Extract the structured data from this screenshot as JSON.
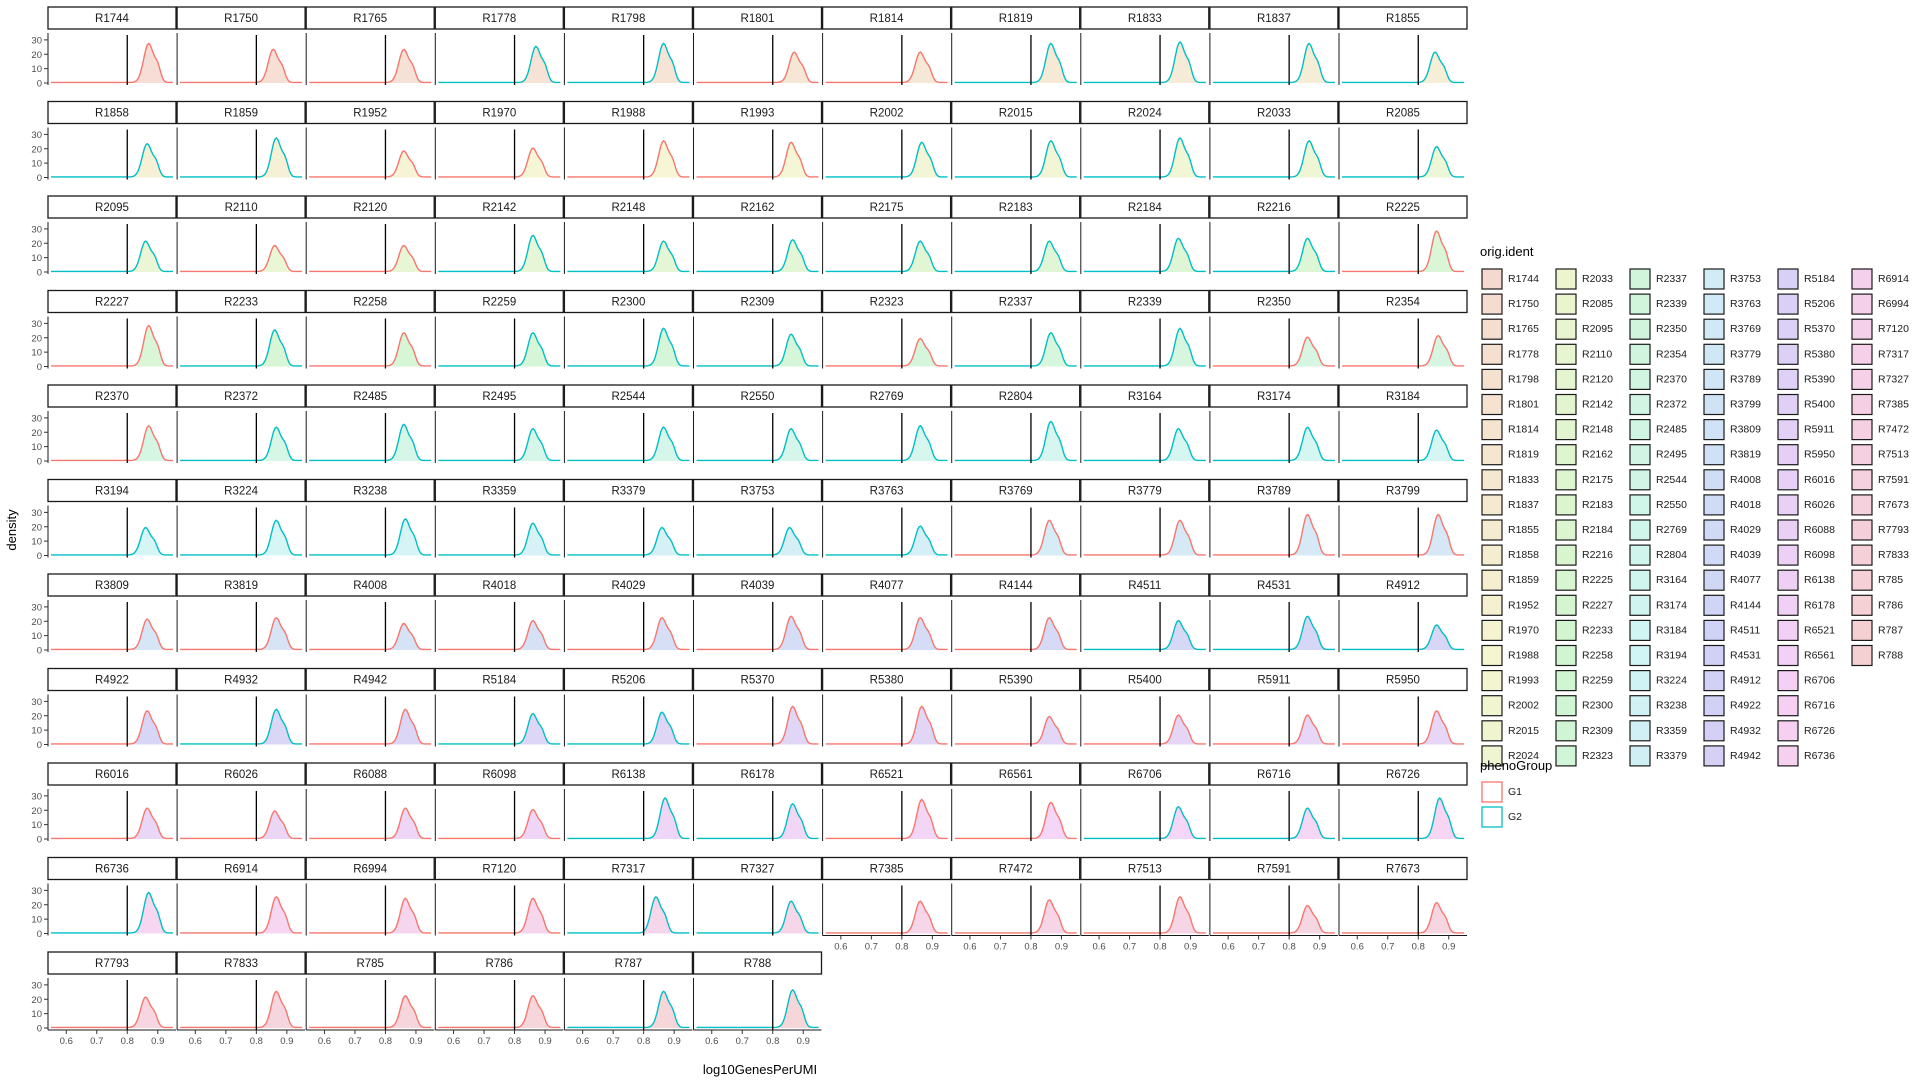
{
  "chart_data": {
    "type": "density-facet",
    "xlabel": "log10GenesPerUMI",
    "ylabel": "density",
    "xlim": [
      0.55,
      0.95
    ],
    "ylim": [
      0,
      32
    ],
    "xticks": [
      0.6,
      0.7,
      0.8,
      0.9
    ],
    "xtick_labels": [
      "0.6",
      "0.7",
      "0.8",
      "0.9"
    ],
    "yticks": [
      0,
      10,
      20,
      30
    ],
    "ytick_labels": [
      "0",
      "10",
      "20",
      "30"
    ],
    "vline_x": 0.8,
    "ncol": 11,
    "colors": {
      "G1": "#F8766D",
      "G2": "#00BFC4"
    },
    "legend_fill": {
      "title": "orig.ident",
      "columns": [
        [
          "R1744",
          "R1750",
          "R1765",
          "R1778",
          "R1798",
          "R1801",
          "R1814",
          "R1819",
          "R1833",
          "R1837",
          "R1855",
          "R1858",
          "R1859",
          "R1952",
          "R1970",
          "R1988",
          "R1993",
          "R2002",
          "R2015",
          "R2024"
        ],
        [
          "R2033",
          "R2085",
          "R2095",
          "R2110",
          "R2120",
          "R2142",
          "R2148",
          "R2162",
          "R2175",
          "R2183",
          "R2184",
          "R2216",
          "R2225",
          "R2227",
          "R2233",
          "R2258",
          "R2259",
          "R2300",
          "R2309",
          "R2323"
        ],
        [
          "R2337",
          "R2339",
          "R2350",
          "R2354",
          "R2370",
          "R2372",
          "R2485",
          "R2495",
          "R2544",
          "R2550",
          "R2769",
          "R2804",
          "R3164",
          "R3174",
          "R3184",
          "R3194",
          "R3224",
          "R3238",
          "R3359",
          "R3379"
        ],
        [
          "R3753",
          "R3763",
          "R3769",
          "R3779",
          "R3789",
          "R3799",
          "R3809",
          "R3819",
          "R4008",
          "R4018",
          "R4029",
          "R4039",
          "R4077",
          "R4144",
          "R4511",
          "R4531",
          "R4912",
          "R4922",
          "R4932",
          "R4942"
        ],
        [
          "R5184",
          "R5206",
          "R5370",
          "R5380",
          "R5390",
          "R5400",
          "R5911",
          "R5950",
          "R6016",
          "R6026",
          "R6088",
          "R6098",
          "R6138",
          "R6178",
          "R6521",
          "R6561",
          "R6706",
          "R6716",
          "R6726",
          "R6736"
        ],
        [
          "R6914",
          "R6994",
          "R7120",
          "R7317",
          "R7327",
          "R7385",
          "R7472",
          "R7513",
          "R7591",
          "R7673",
          "R7793",
          "R7833",
          "R785",
          "R786",
          "R787",
          "R788"
        ]
      ]
    },
    "legend_color": {
      "title": "phenoGroup",
      "entries": [
        "G1",
        "G2"
      ]
    },
    "panels": [
      {
        "id": "R1744",
        "g": "G1",
        "peak": 0.87,
        "h": 27
      },
      {
        "id": "R1750",
        "g": "G1",
        "peak": 0.855,
        "h": 23
      },
      {
        "id": "R1765",
        "g": "G1",
        "peak": 0.86,
        "h": 23
      },
      {
        "id": "R1778",
        "g": "G2",
        "peak": 0.87,
        "h": 25
      },
      {
        "id": "R1798",
        "g": "G2",
        "peak": 0.865,
        "h": 27
      },
      {
        "id": "R1801",
        "g": "G1",
        "peak": 0.87,
        "h": 21
      },
      {
        "id": "R1814",
        "g": "G1",
        "peak": 0.86,
        "h": 21
      },
      {
        "id": "R1819",
        "g": "G2",
        "peak": 0.865,
        "h": 27
      },
      {
        "id": "R1833",
        "g": "G2",
        "peak": 0.865,
        "h": 28
      },
      {
        "id": "R1837",
        "g": "G2",
        "peak": 0.865,
        "h": 27
      },
      {
        "id": "R1855",
        "g": "G2",
        "peak": 0.855,
        "h": 21
      },
      {
        "id": "R1858",
        "g": "G2",
        "peak": 0.865,
        "h": 23
      },
      {
        "id": "R1859",
        "g": "G2",
        "peak": 0.865,
        "h": 27
      },
      {
        "id": "R1952",
        "g": "G1",
        "peak": 0.86,
        "h": 18
      },
      {
        "id": "R1970",
        "g": "G1",
        "peak": 0.86,
        "h": 20
      },
      {
        "id": "R1988",
        "g": "G1",
        "peak": 0.865,
        "h": 25
      },
      {
        "id": "R1993",
        "g": "G1",
        "peak": 0.86,
        "h": 24
      },
      {
        "id": "R2002",
        "g": "G2",
        "peak": 0.865,
        "h": 24
      },
      {
        "id": "R2015",
        "g": "G2",
        "peak": 0.865,
        "h": 25
      },
      {
        "id": "R2024",
        "g": "G2",
        "peak": 0.865,
        "h": 27
      },
      {
        "id": "R2033",
        "g": "G2",
        "peak": 0.865,
        "h": 25
      },
      {
        "id": "R2085",
        "g": "G2",
        "peak": 0.86,
        "h": 21
      },
      {
        "id": "R2095",
        "g": "G2",
        "peak": 0.86,
        "h": 21
      },
      {
        "id": "R2110",
        "g": "G1",
        "peak": 0.86,
        "h": 18
      },
      {
        "id": "R2120",
        "g": "G1",
        "peak": 0.86,
        "h": 18
      },
      {
        "id": "R2142",
        "g": "G2",
        "peak": 0.86,
        "h": 25
      },
      {
        "id": "R2148",
        "g": "G2",
        "peak": 0.865,
        "h": 21
      },
      {
        "id": "R2162",
        "g": "G2",
        "peak": 0.865,
        "h": 22
      },
      {
        "id": "R2175",
        "g": "G2",
        "peak": 0.86,
        "h": 21
      },
      {
        "id": "R2183",
        "g": "G2",
        "peak": 0.86,
        "h": 21
      },
      {
        "id": "R2184",
        "g": "G2",
        "peak": 0.86,
        "h": 23
      },
      {
        "id": "R2216",
        "g": "G2",
        "peak": 0.86,
        "h": 23
      },
      {
        "id": "R2225",
        "g": "G1",
        "peak": 0.86,
        "h": 28
      },
      {
        "id": "R2227",
        "g": "G1",
        "peak": 0.87,
        "h": 28
      },
      {
        "id": "R2233",
        "g": "G2",
        "peak": 0.86,
        "h": 25
      },
      {
        "id": "R2258",
        "g": "G1",
        "peak": 0.86,
        "h": 23
      },
      {
        "id": "R2259",
        "g": "G2",
        "peak": 0.86,
        "h": 23
      },
      {
        "id": "R2300",
        "g": "G2",
        "peak": 0.865,
        "h": 26
      },
      {
        "id": "R2309",
        "g": "G2",
        "peak": 0.86,
        "h": 22
      },
      {
        "id": "R2323",
        "g": "G1",
        "peak": 0.86,
        "h": 19
      },
      {
        "id": "R2337",
        "g": "G2",
        "peak": 0.865,
        "h": 23
      },
      {
        "id": "R2339",
        "g": "G2",
        "peak": 0.865,
        "h": 26
      },
      {
        "id": "R2350",
        "g": "G1",
        "peak": 0.86,
        "h": 20
      },
      {
        "id": "R2354",
        "g": "G1",
        "peak": 0.865,
        "h": 21
      },
      {
        "id": "R2370",
        "g": "G1",
        "peak": 0.87,
        "h": 24
      },
      {
        "id": "R2372",
        "g": "G2",
        "peak": 0.865,
        "h": 23
      },
      {
        "id": "R2485",
        "g": "G2",
        "peak": 0.86,
        "h": 25
      },
      {
        "id": "R2495",
        "g": "G2",
        "peak": 0.86,
        "h": 22
      },
      {
        "id": "R2544",
        "g": "G2",
        "peak": 0.865,
        "h": 23
      },
      {
        "id": "R2550",
        "g": "G2",
        "peak": 0.86,
        "h": 22
      },
      {
        "id": "R2769",
        "g": "G2",
        "peak": 0.86,
        "h": 24
      },
      {
        "id": "R2804",
        "g": "G2",
        "peak": 0.865,
        "h": 27
      },
      {
        "id": "R3164",
        "g": "G2",
        "peak": 0.86,
        "h": 22
      },
      {
        "id": "R3174",
        "g": "G2",
        "peak": 0.86,
        "h": 23
      },
      {
        "id": "R3184",
        "g": "G2",
        "peak": 0.86,
        "h": 21
      },
      {
        "id": "R3194",
        "g": "G2",
        "peak": 0.86,
        "h": 19
      },
      {
        "id": "R3224",
        "g": "G2",
        "peak": 0.865,
        "h": 24
      },
      {
        "id": "R3238",
        "g": "G2",
        "peak": 0.865,
        "h": 25
      },
      {
        "id": "R3359",
        "g": "G2",
        "peak": 0.86,
        "h": 22
      },
      {
        "id": "R3379",
        "g": "G2",
        "peak": 0.86,
        "h": 19
      },
      {
        "id": "R3753",
        "g": "G2",
        "peak": 0.855,
        "h": 19
      },
      {
        "id": "R3763",
        "g": "G2",
        "peak": 0.86,
        "h": 20
      },
      {
        "id": "R3769",
        "g": "G1",
        "peak": 0.86,
        "h": 24
      },
      {
        "id": "R3779",
        "g": "G1",
        "peak": 0.865,
        "h": 24
      },
      {
        "id": "R3789",
        "g": "G1",
        "peak": 0.86,
        "h": 28
      },
      {
        "id": "R3799",
        "g": "G1",
        "peak": 0.865,
        "h": 28
      },
      {
        "id": "R3809",
        "g": "G1",
        "peak": 0.865,
        "h": 21
      },
      {
        "id": "R3819",
        "g": "G1",
        "peak": 0.865,
        "h": 22
      },
      {
        "id": "R4008",
        "g": "G1",
        "peak": 0.86,
        "h": 18
      },
      {
        "id": "R4018",
        "g": "G1",
        "peak": 0.86,
        "h": 20
      },
      {
        "id": "R4029",
        "g": "G1",
        "peak": 0.86,
        "h": 22
      },
      {
        "id": "R4039",
        "g": "G1",
        "peak": 0.86,
        "h": 23
      },
      {
        "id": "R4077",
        "g": "G1",
        "peak": 0.86,
        "h": 22
      },
      {
        "id": "R4144",
        "g": "G1",
        "peak": 0.86,
        "h": 22
      },
      {
        "id": "R4511",
        "g": "G2",
        "peak": 0.86,
        "h": 20
      },
      {
        "id": "R4531",
        "g": "G2",
        "peak": 0.86,
        "h": 23
      },
      {
        "id": "R4912",
        "g": "G2",
        "peak": 0.86,
        "h": 17
      },
      {
        "id": "R4922",
        "g": "G1",
        "peak": 0.865,
        "h": 23
      },
      {
        "id": "R4932",
        "g": "G2",
        "peak": 0.865,
        "h": 24
      },
      {
        "id": "R4942",
        "g": "G1",
        "peak": 0.865,
        "h": 24
      },
      {
        "id": "R5184",
        "g": "G2",
        "peak": 0.86,
        "h": 21
      },
      {
        "id": "R5206",
        "g": "G2",
        "peak": 0.86,
        "h": 22
      },
      {
        "id": "R5370",
        "g": "G1",
        "peak": 0.865,
        "h": 26
      },
      {
        "id": "R5380",
        "g": "G1",
        "peak": 0.865,
        "h": 26
      },
      {
        "id": "R5390",
        "g": "G1",
        "peak": 0.86,
        "h": 19
      },
      {
        "id": "R5400",
        "g": "G1",
        "peak": 0.86,
        "h": 20
      },
      {
        "id": "R5911",
        "g": "G1",
        "peak": 0.86,
        "h": 20
      },
      {
        "id": "R5950",
        "g": "G1",
        "peak": 0.86,
        "h": 23
      },
      {
        "id": "R6016",
        "g": "G1",
        "peak": 0.865,
        "h": 21
      },
      {
        "id": "R6026",
        "g": "G1",
        "peak": 0.86,
        "h": 19
      },
      {
        "id": "R6088",
        "g": "G1",
        "peak": 0.865,
        "h": 21
      },
      {
        "id": "R6098",
        "g": "G1",
        "peak": 0.86,
        "h": 20
      },
      {
        "id": "R6138",
        "g": "G2",
        "peak": 0.87,
        "h": 28
      },
      {
        "id": "R6178",
        "g": "G2",
        "peak": 0.865,
        "h": 24
      },
      {
        "id": "R6521",
        "g": "G1",
        "peak": 0.865,
        "h": 27
      },
      {
        "id": "R6561",
        "g": "G1",
        "peak": 0.865,
        "h": 25
      },
      {
        "id": "R6706",
        "g": "G2",
        "peak": 0.86,
        "h": 22
      },
      {
        "id": "R6716",
        "g": "G2",
        "peak": 0.86,
        "h": 21
      },
      {
        "id": "R6726",
        "g": "G2",
        "peak": 0.87,
        "h": 28
      },
      {
        "id": "R6736",
        "g": "G2",
        "peak": 0.87,
        "h": 28
      },
      {
        "id": "R6914",
        "g": "G1",
        "peak": 0.865,
        "h": 25
      },
      {
        "id": "R6994",
        "g": "G1",
        "peak": 0.865,
        "h": 24
      },
      {
        "id": "R7120",
        "g": "G1",
        "peak": 0.86,
        "h": 24
      },
      {
        "id": "R7317",
        "g": "G2",
        "peak": 0.84,
        "h": 25
      },
      {
        "id": "R7327",
        "g": "G2",
        "peak": 0.86,
        "h": 22
      },
      {
        "id": "R7385",
        "g": "G1",
        "peak": 0.86,
        "h": 22
      },
      {
        "id": "R7472",
        "g": "G1",
        "peak": 0.86,
        "h": 23
      },
      {
        "id": "R7513",
        "g": "G1",
        "peak": 0.865,
        "h": 25
      },
      {
        "id": "R7591",
        "g": "G1",
        "peak": 0.86,
        "h": 19
      },
      {
        "id": "R7673",
        "g": "G1",
        "peak": 0.86,
        "h": 21
      },
      {
        "id": "R7793",
        "g": "G1",
        "peak": 0.86,
        "h": 21
      },
      {
        "id": "R7833",
        "g": "G1",
        "peak": 0.865,
        "h": 25
      },
      {
        "id": "R785",
        "g": "G1",
        "peak": 0.865,
        "h": 22
      },
      {
        "id": "R786",
        "g": "G1",
        "peak": 0.86,
        "h": 22
      },
      {
        "id": "R787",
        "g": "G2",
        "peak": 0.865,
        "h": 25
      },
      {
        "id": "R788",
        "g": "G2",
        "peak": 0.865,
        "h": 26
      }
    ]
  }
}
